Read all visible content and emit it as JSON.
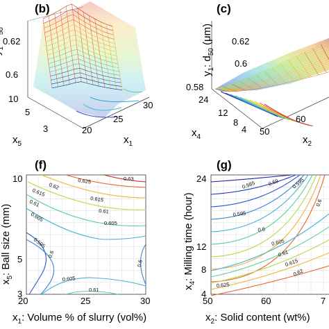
{
  "chart_data": [
    {
      "panel": "(b)",
      "type": "surface",
      "zlabel": "y1: d50",
      "xlabel": "x1",
      "ylabel": "x5",
      "z_ticks": [
        "0.6",
        "0.62"
      ],
      "x_ticks": [
        "20",
        "25",
        "30"
      ],
      "y_ticks": [
        "3",
        "5",
        "10"
      ]
    },
    {
      "panel": "(c)",
      "type": "surface",
      "zlabel": "y1: d50 (μm)",
      "xlabel": "x2",
      "ylabel": "x4",
      "z_ticks": [
        "0.58",
        "0.6",
        "0.62"
      ],
      "x_ticks": [
        "50",
        "60"
      ],
      "y_ticks": [
        "4",
        "8",
        "12",
        "24"
      ]
    },
    {
      "panel": "(f)",
      "type": "contour",
      "xlabel": "x1: Volume % of slurry (vol%)",
      "ylabel": "x5: Ball size (mm)",
      "x_ticks": [
        "20",
        "25",
        "30"
      ],
      "y_ticks": [
        "3",
        "5",
        "10"
      ],
      "contour_levels": [
        "0.595",
        "0.6",
        "0.605",
        "0.61",
        "0.615",
        "0.62",
        "0.625",
        "0.63"
      ]
    },
    {
      "panel": "(g)",
      "type": "contour",
      "xlabel": "x2: Solid content (wt%)",
      "ylabel": "x4: Milling time (hour)",
      "x_ticks": [
        "50",
        "60",
        "7"
      ],
      "y_ticks": [
        "4",
        "8",
        "12",
        "24"
      ],
      "contour_levels": [
        "0.585",
        "0.59",
        "0.595",
        "0.6",
        "0.605",
        "0.61",
        "0.615",
        "0.62",
        "0.625"
      ]
    }
  ],
  "labels": {
    "b_panel": "(b)",
    "c_panel": "(c)",
    "f_panel": "(f)",
    "g_panel": "(g)",
    "b_z1": "0.62",
    "b_z2": "0.6",
    "b_y10": "10",
    "b_y5": "5",
    "b_y3": "3",
    "b_x20": "20",
    "b_x25": "25",
    "b_x30": "30",
    "b_xlab": "x",
    "b_xsub": "1",
    "b_ylab": "x",
    "b_ysub": "5",
    "b_zlab_a": "y",
    "b_zlab_sub": "1",
    "b_zlab_b": ": d",
    "b_zlab_sub2": "50",
    "c_z1": "0.62",
    "c_z2": "0.6",
    "c_z3": "0.58",
    "c_y24": "24",
    "c_y12": "12",
    "c_y8": "8",
    "c_y4": "4",
    "c_x50": "50",
    "c_x60": "60",
    "c_xlab": "x",
    "c_xsub": "2",
    "c_ylab": "x",
    "c_ysub": "4",
    "c_zlab_a": "y",
    "c_zlab_sub": "1",
    "c_zlab_b": ": d",
    "c_zlab_sub2": "50",
    "c_zlab_unit": " (μm)",
    "f_x20": "20",
    "f_x25": "25",
    "f_x30": "30",
    "f_y10": "10",
    "f_y5": "5",
    "f_y3": "3",
    "f_xlab_a": "x",
    "f_xlab_sub": "1",
    "f_xlab_b": ": Volume % of slurry (vol%)",
    "f_ylab_a": "x",
    "f_ylab_sub": "5",
    "f_ylab_b": ": Ball size (mm)",
    "g_x50": "50",
    "g_x60": "60",
    "g_x70": "7",
    "g_y24": "24",
    "g_y12": "12",
    "g_y8": "8",
    "g_y4": "4",
    "g_xlab_a": "x",
    "g_xlab_sub": "2",
    "g_xlab_b": ": Solid content (wt%)",
    "g_ylab_a": "x",
    "g_ylab_sub": "4",
    "g_ylab_b": ": Milling time (hour)"
  },
  "colors": {
    "c0585": "#1a2a9a",
    "c059": "#2536b8",
    "c0595": "#2f55cc",
    "c06": "#3a85d8",
    "c0605": "#45b4d6",
    "c061": "#5ccf9a",
    "c0615": "#b6d94a",
    "c062": "#f0b433",
    "c0625": "#e8662a",
    "c063": "#c82a1f"
  }
}
